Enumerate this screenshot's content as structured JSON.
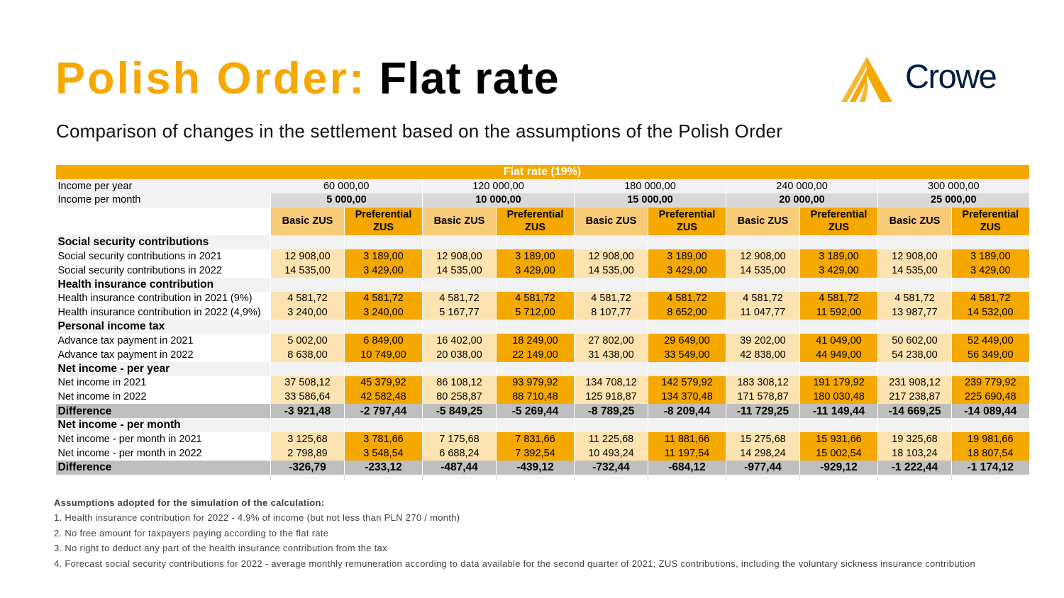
{
  "title": {
    "part1": "Polish Order:",
    "part2": "Flat rate"
  },
  "subtitle": "Comparison of changes in the settlement based on the assumptions of the Polish Order",
  "logo": {
    "text": "Crowe",
    "colors": {
      "mark": "#F5A800",
      "text": "#011E41"
    }
  },
  "colors": {
    "orange": "#F5A800",
    "light_orange": "#F8CB78",
    "pale_orange": "#FDE3B0",
    "grey": "#D9D9D9",
    "light_grey": "#F2F2F2",
    "diff_grey": "#BFBFBF"
  },
  "table": {
    "banner": "Flat rate (19%)",
    "income_per_year_label": "Income per year",
    "income_per_year": [
      "60 000,00",
      "120 000,00",
      "180 000,00",
      "240 000,00",
      "300 000,00"
    ],
    "income_per_month_label": "Income per month",
    "income_per_month": [
      "5 000,00",
      "10 000,00",
      "15 000,00",
      "20 000,00",
      "25 000,00"
    ],
    "zus_basic": "Basic ZUS",
    "zus_pref": "Preferential ZUS",
    "rows": [
      {
        "type": "section",
        "label": "Social security contributions"
      },
      {
        "type": "row",
        "label": "Social security contributions in 2021",
        "values": [
          "12 908,00",
          "3 189,00",
          "12 908,00",
          "3 189,00",
          "12 908,00",
          "3 189,00",
          "12 908,00",
          "3 189,00",
          "12 908,00",
          "3 189,00"
        ]
      },
      {
        "type": "row",
        "label": "Social security contributions in 2022",
        "values": [
          "14 535,00",
          "3 429,00",
          "14 535,00",
          "3 429,00",
          "14 535,00",
          "3 429,00",
          "14 535,00",
          "3 429,00",
          "14 535,00",
          "3 429,00"
        ]
      },
      {
        "type": "section",
        "label": "Health insurance contribution"
      },
      {
        "type": "row",
        "label": "Health insurance contribution in 2021 (9%)",
        "values": [
          "4 581,72",
          "4 581,72",
          "4 581,72",
          "4 581,72",
          "4 581,72",
          "4 581,72",
          "4 581,72",
          "4 581,72",
          "4 581,72",
          "4 581,72"
        ]
      },
      {
        "type": "row",
        "label": "Health insurance contribution in 2022 (4,9%)",
        "values": [
          "3 240,00",
          "3 240,00",
          "5 167,77",
          "5 712,00",
          "8 107,77",
          "8 652,00",
          "11 047,77",
          "11 592,00",
          "13 987,77",
          "14 532,00"
        ]
      },
      {
        "type": "section",
        "label": "Personal income tax"
      },
      {
        "type": "row",
        "label": "Advance tax payment in 2021",
        "values": [
          "5 002,00",
          "6 849,00",
          "16 402,00",
          "18 249,00",
          "27 802,00",
          "29 649,00",
          "39 202,00",
          "41 049,00",
          "50 602,00",
          "52 449,00"
        ]
      },
      {
        "type": "row",
        "label": "Advance tax payment in 2022",
        "values": [
          "8 638,00",
          "10 749,00",
          "20 038,00",
          "22 149,00",
          "31 438,00",
          "33 549,00",
          "42 838,00",
          "44 949,00",
          "54 238,00",
          "56 349,00"
        ]
      },
      {
        "type": "section",
        "label": "Net income - per year"
      },
      {
        "type": "row",
        "label": "Net income in 2021",
        "values": [
          "37 508,12",
          "45 379,92",
          "86 108,12",
          "93 979,92",
          "134 708,12",
          "142 579,92",
          "183 308,12",
          "191 179,92",
          "231 908,12",
          "239 779,92"
        ]
      },
      {
        "type": "row",
        "label": "Net income in 2022",
        "values": [
          "33 586,64",
          "42 582,48",
          "80 258,87",
          "88 710,48",
          "125 918,87",
          "134 370,48",
          "171 578,87",
          "180 030,48",
          "217 238,87",
          "225 690,48"
        ]
      },
      {
        "type": "diff",
        "label": "Difference",
        "values": [
          "-3 921,48",
          "-2 797,44",
          "-5 849,25",
          "-5 269,44",
          "-8 789,25",
          "-8 209,44",
          "-11 729,25",
          "-11 149,44",
          "-14 669,25",
          "-14 089,44"
        ]
      },
      {
        "type": "section",
        "label": "Net income - per month"
      },
      {
        "type": "row",
        "label": "Net income - per month in 2021",
        "values": [
          "3 125,68",
          "3 781,66",
          "7 175,68",
          "7 831,66",
          "11 225,68",
          "11 881,66",
          "15 275,68",
          "15 931,66",
          "19 325,68",
          "19 981,66"
        ]
      },
      {
        "type": "row",
        "label": "Net income - per month in 2022",
        "values": [
          "2 798,89",
          "3 548,54",
          "6 688,24",
          "7 392,54",
          "10 493,24",
          "11 197,54",
          "14 298,24",
          "15 002,54",
          "18 103,24",
          "18 807,54"
        ]
      },
      {
        "type": "diff",
        "label": "Difference",
        "values": [
          "-326,79",
          "-233,12",
          "-487,44",
          "-439,12",
          "-732,44",
          "-684,12",
          "-977,44",
          "-929,12",
          "-1 222,44",
          "-1 174,12"
        ]
      }
    ]
  },
  "notes": {
    "heading": "Assumptions adopted for the simulation of the calculation:",
    "items": [
      "1. Health insurance contribution for 2022 - 4.9% of income (but not less than PLN 270 / month)",
      "2. No free amount for taxpayers paying according to the flat rate",
      "3. No right to deduct any part of the health insurance contribution from the tax",
      "4. Forecast social security contributions for 2022 - average monthly remuneration according to data available for the second quarter of 2021; ZUS contributions, including the voluntary sickness insurance contribution"
    ]
  }
}
